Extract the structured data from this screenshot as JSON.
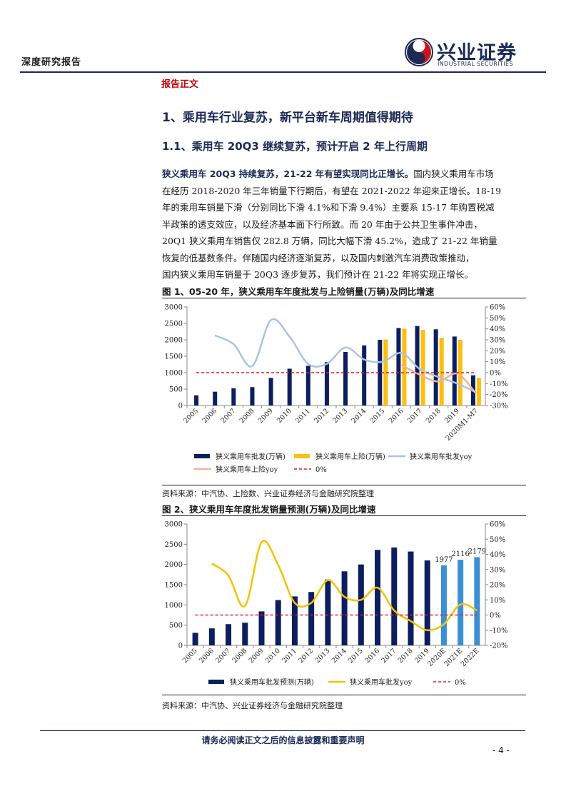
{
  "header": {
    "left_title": "深度研究报告",
    "logo_cn": "兴业证券",
    "logo_en": "INDUSTRIAL SECURITIES"
  },
  "section_tag": "报告正文",
  "heading1": "1、乘用车行业复苏，新平台新车周期值得期待",
  "heading2": "1.1、乘用车 20Q3 继续复苏，预计开启 2 年上行周期",
  "paragraph": {
    "lead": "狭义乘用车 20Q3 持续复苏，21-22 年有望实现同比正增长。",
    "lines": [
      "国内狭义乘用车市场",
      "在经历 2018-2020 年三年销量下行期后，有望在 2021-2022 年迎来正增长。18-19",
      "年的乘用车销量下滑（分别同比下滑 4.1%和下滑 9.4%）主要系 15-17 年购置税减",
      "半政策的透支效应，以及经济基本面下行所致。而 20 年由于公共卫生事件冲击，",
      "20Q1 狭义乘用车销售仅 282.8 万辆，同比大幅下滑 45.2%，造成了 21-22 年销量",
      "恢复的低基数条件。伴随国内经济逐渐复苏，以及国内刺激汽车消费政策推动，",
      "国内狭义乘用车销量于 20Q3 逐步复苏，我们预计在 21-22 年将实现正增长。"
    ]
  },
  "figure1": {
    "title": "图 1、05-20 年，狭义乘用车年度批发与上险销量(万辆)及同比增速",
    "source": "资料来源：中汽协、上险数、兴业证券经济与金融研究院整理"
  },
  "figure2": {
    "title": "图 2、狭义乘用车年度批发销量预测(万辆)及同比增速",
    "source": "资料来源：中汽协、兴业证券经济与金融研究院整理"
  },
  "footer": {
    "notice": "请务必阅读正文之后的信息披露和重要声明",
    "page": "- 4 -"
  },
  "colors": {
    "navy": "#0d1e5e",
    "gold": "#fbbf0f",
    "light_blue": "#a9c4e6",
    "salmon": "#f2b396",
    "red_dash": "#e02020",
    "forecast_blue": "#3a8fd6",
    "yellow_line": "#f5c200"
  },
  "chart_data": [
    {
      "type": "bar",
      "categories": [
        "2005",
        "2006",
        "2007",
        "2008",
        "2009",
        "2010",
        "2011",
        "2012",
        "2013",
        "2014",
        "2015",
        "2016",
        "2017",
        "2018",
        "2019",
        "2020M1-M7"
      ],
      "series": [
        {
          "name": "狭义乘用车批发(万辆)",
          "axis": "left",
          "values": [
            310,
            420,
            525,
            560,
            840,
            1120,
            1210,
            1320,
            1630,
            1830,
            2000,
            2360,
            2420,
            2320,
            2100,
            920
          ]
        },
        {
          "name": "狭义乘用车上险(万辆)",
          "axis": "left",
          "values": [
            null,
            null,
            null,
            null,
            null,
            null,
            null,
            null,
            null,
            null,
            2010,
            2340,
            2300,
            2060,
            2000,
            840
          ]
        },
        {
          "name": "狭义乘用车批发yoy",
          "axis": "right",
          "type": "line",
          "values": [
            null,
            34,
            26,
            6,
            48,
            33,
            8,
            8,
            23,
            12,
            10,
            18,
            3,
            -4,
            -10,
            -18
          ]
        },
        {
          "name": "狭义乘用车上险yoy",
          "axis": "right",
          "type": "line",
          "values": [
            null,
            null,
            null,
            null,
            null,
            null,
            null,
            null,
            null,
            null,
            null,
            7,
            -2,
            -8,
            -1,
            -19
          ]
        },
        {
          "name": "0%",
          "axis": "right",
          "type": "line",
          "values": [
            0,
            0,
            0,
            0,
            0,
            0,
            0,
            0,
            0,
            0,
            0,
            0,
            0,
            0,
            0,
            0
          ]
        }
      ],
      "y_left": {
        "min": 0,
        "max": 3000,
        "ticks": [
          "0",
          "500",
          "1000",
          "1500",
          "2000",
          "2500",
          "3000"
        ]
      },
      "y_right": {
        "min": -30,
        "max": 60,
        "ticks": [
          "-30%",
          "-20%",
          "-10%",
          "0%",
          "10%",
          "20%",
          "30%",
          "40%",
          "50%",
          "60%"
        ]
      },
      "legend": [
        "狭义乘用车批发(万辆)",
        "狭义乘用车上险(万辆)",
        "狭义乘用车批发yoy",
        "狭义乘用车上险yoy",
        "0%"
      ],
      "legend_position": "bottom"
    },
    {
      "type": "bar",
      "categories": [
        "2005",
        "2006",
        "2007",
        "2008",
        "2009",
        "2010",
        "2011",
        "2012",
        "2013",
        "2014",
        "2015",
        "2016",
        "2017",
        "2018",
        "2019",
        "2020E",
        "2021E",
        "2022E"
      ],
      "series": [
        {
          "name": "狭义乘用车批发预测(万辆)",
          "axis": "left",
          "values": [
            310,
            420,
            525,
            560,
            840,
            1120,
            1210,
            1320,
            1630,
            1830,
            2000,
            2360,
            2420,
            2320,
            2100,
            1977,
            2116,
            2179
          ]
        },
        {
          "name": "狭义乘用车批发yoy",
          "axis": "right",
          "type": "line",
          "values": [
            null,
            34,
            26,
            6,
            48,
            33,
            8,
            8,
            23,
            12,
            10,
            18,
            3,
            -4,
            -10,
            -6,
            7,
            3
          ]
        },
        {
          "name": "0%",
          "axis": "right",
          "type": "line",
          "values": [
            0,
            0,
            0,
            0,
            0,
            0,
            0,
            0,
            0,
            0,
            0,
            0,
            0,
            0,
            0,
            0,
            0,
            0
          ]
        }
      ],
      "data_labels": {
        "2020E": "1977",
        "2021E": "2116",
        "2022E": "2179"
      },
      "y_left": {
        "min": 0,
        "max": 3000,
        "ticks": [
          "0",
          "500",
          "1000",
          "1500",
          "2000",
          "2500",
          "3000"
        ]
      },
      "y_right": {
        "min": -20,
        "max": 60,
        "ticks": [
          "-20%",
          "-10%",
          "0%",
          "10%",
          "20%",
          "30%",
          "40%",
          "50%",
          "60%"
        ]
      },
      "legend": [
        "狭义乘用车批发预测(万辆)",
        "狭义乘用车批发yoy",
        "0%"
      ],
      "legend_position": "bottom"
    }
  ]
}
